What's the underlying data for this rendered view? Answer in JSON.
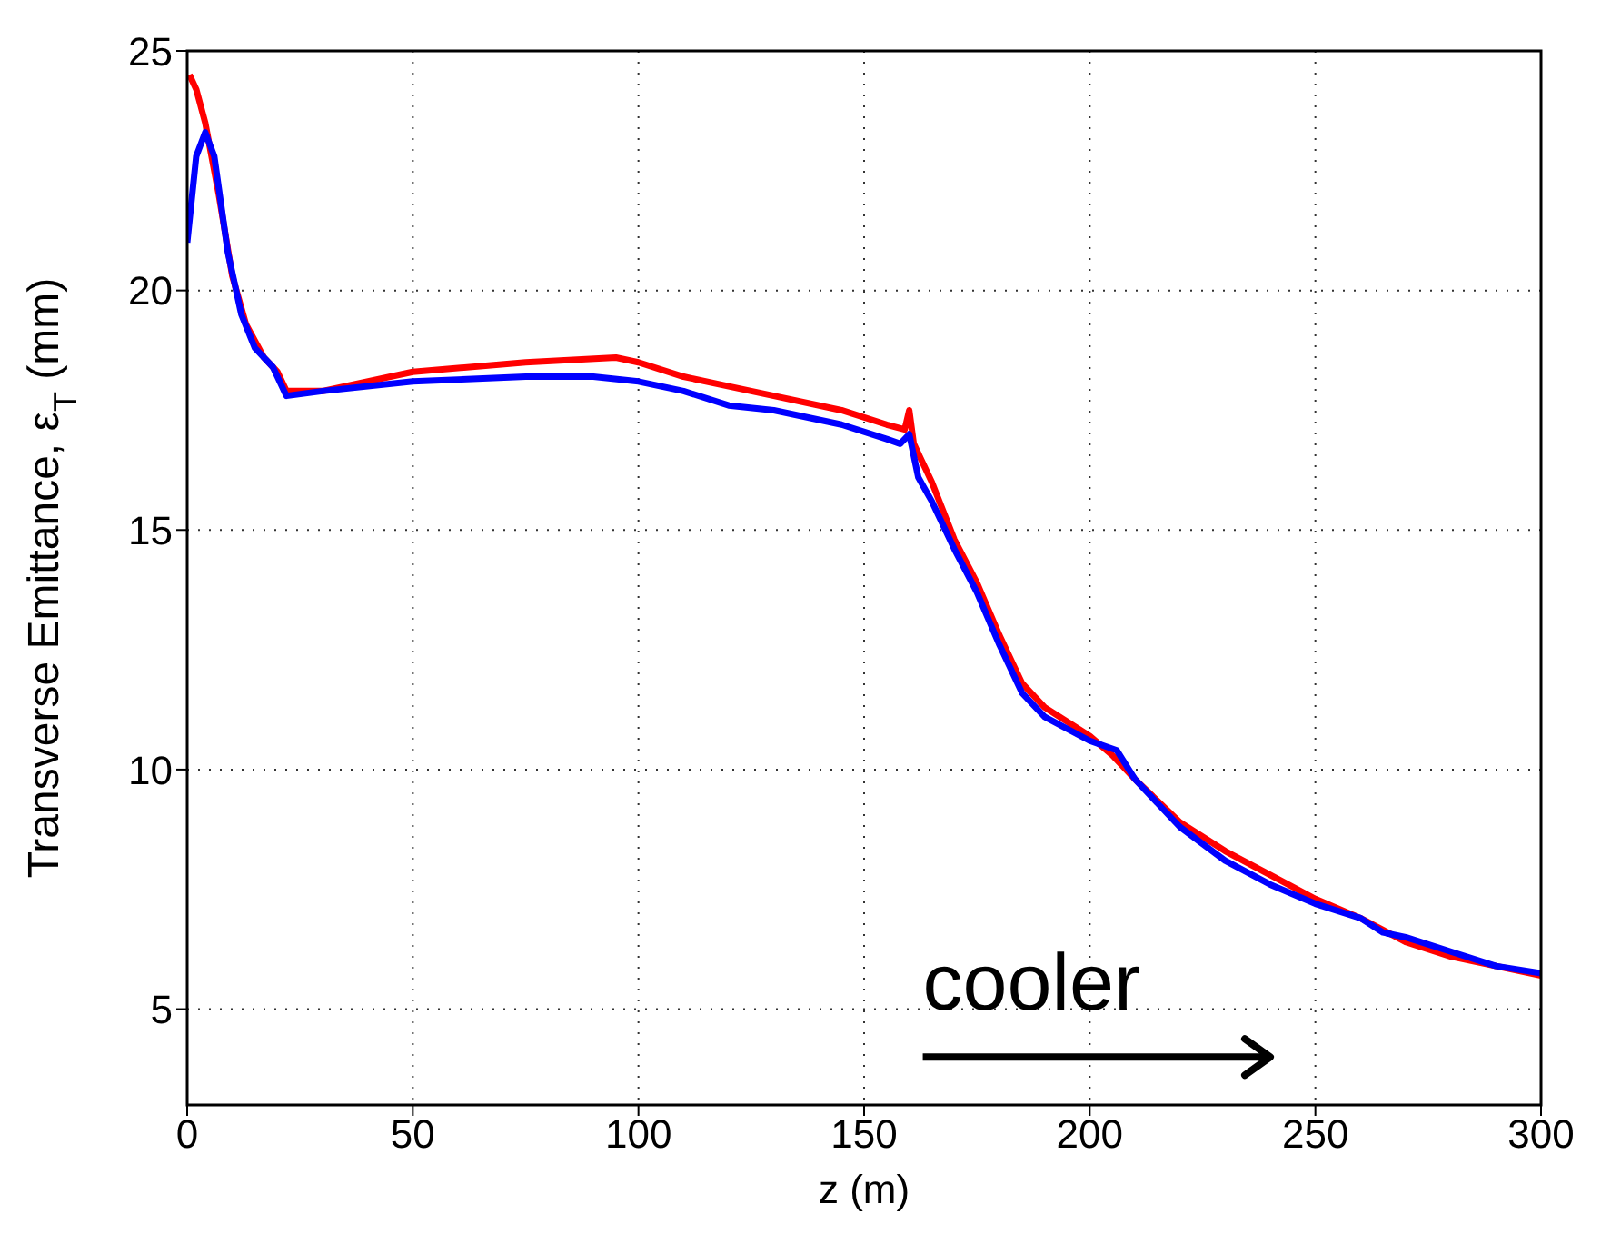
{
  "chart_data": {
    "type": "line",
    "xlabel": "z (m)",
    "ylabel": "Transverse Emittance, ε$_{T}$ (mm)",
    "xlim": [
      0,
      300
    ],
    "ylim": [
      3,
      25
    ],
    "xticks": [
      0,
      50,
      100,
      150,
      200,
      250,
      300
    ],
    "yticks": [
      5,
      10,
      15,
      20,
      25
    ],
    "grid": true,
    "legend": false,
    "marker": "none",
    "line_style": "solid",
    "annotations": [
      "cooler"
    ],
    "series": [
      {
        "color": "#ff0000",
        "x": [
          0.5,
          2,
          4,
          7,
          10,
          13,
          17,
          20,
          22,
          30,
          50,
          75,
          95,
          100,
          110,
          120,
          130,
          145,
          155,
          159,
          160,
          161,
          165,
          170,
          175,
          180,
          185,
          190,
          200,
          205,
          210,
          220,
          230,
          240,
          250,
          260,
          270,
          280,
          290,
          300
        ],
        "values": [
          24.5,
          24.2,
          23.5,
          22,
          20.3,
          19.3,
          18.6,
          18.3,
          17.9,
          17.9,
          18.3,
          18.5,
          18.6,
          18.5,
          18.2,
          18.0,
          17.8,
          17.5,
          17.2,
          17.1,
          17.5,
          16.8,
          16.0,
          14.8,
          13.9,
          12.8,
          11.8,
          11.3,
          10.7,
          10.3,
          9.8,
          8.9,
          8.3,
          7.8,
          7.3,
          6.9,
          6.4,
          6.1,
          5.9,
          5.7
        ]
      },
      {
        "color": "#0000ff",
        "x": [
          0,
          2,
          4,
          6,
          9,
          12,
          15,
          19,
          22,
          30,
          50,
          75,
          90,
          100,
          110,
          120,
          130,
          145,
          155,
          158,
          160,
          162,
          165,
          170,
          175,
          180,
          185,
          190,
          200,
          206,
          210,
          220,
          230,
          240,
          250,
          260,
          265,
          270,
          280,
          290,
          300
        ],
        "values": [
          21,
          22.8,
          23.3,
          22.8,
          20.8,
          19.5,
          18.8,
          18.4,
          17.8,
          17.9,
          18.1,
          18.2,
          18.2,
          18.1,
          17.9,
          17.6,
          17.5,
          17.2,
          16.9,
          16.8,
          17.0,
          16.1,
          15.6,
          14.6,
          13.7,
          12.6,
          11.6,
          11.1,
          10.6,
          10.4,
          9.8,
          8.8,
          8.1,
          7.6,
          7.2,
          6.9,
          6.6,
          6.5,
          6.2,
          5.9,
          5.75
        ]
      }
    ]
  }
}
